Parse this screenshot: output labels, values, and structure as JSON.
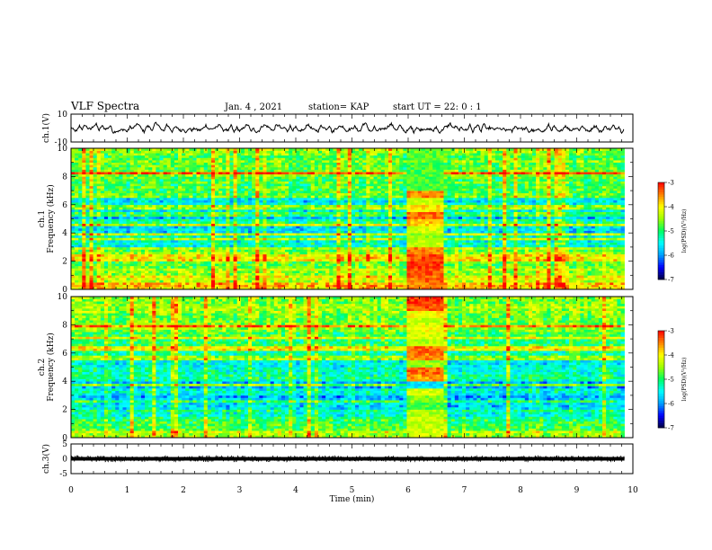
{
  "header": {
    "title": "VLF Spectra",
    "date": "Jan. 4 , 2021",
    "station": "station= KAP",
    "start": "start UT =  22: 0 : 1"
  },
  "chart_data": [
    {
      "type": "line",
      "name": "waveform_ch1",
      "ylabel": "ch.1(V)",
      "ylim": [
        -10,
        10
      ],
      "yticks": [
        "10",
        "-10"
      ],
      "xlim": [
        0,
        9.85
      ],
      "x_step_min": 0.05,
      "values": [
        0.5,
        -1.4,
        -2.3,
        1.5,
        -0.8,
        2.3,
        -0.2,
        -0.9,
        1.6,
        2.7,
        -1.8,
        1.7,
        -0.5,
        -0.4,
        1.8,
        -3.2,
        -2.2,
        -2.3,
        -1.2,
        -1.0,
        -2.7,
        0.9,
        -0.3,
        1.9,
        3.0,
        -0.3,
        -2.7,
        1.4,
        0.8,
        -2.0,
        3.8,
        2.7,
        -1.0,
        -2.4,
        2.5,
        0.4,
        -2.4,
        0.6,
        0.2,
        -2.2,
        -0.4,
        -3.5,
        0.0,
        -1.7,
        -0.2,
        -1.4,
        -1.5,
        -0.3,
        2.1,
        -0.7,
        -0.6,
        -0.1,
        0.6,
        3.2,
        -1.8,
        -0.9,
        -2.2,
        2.2,
        -3.1,
        0.4,
        -2.1,
        -0.8,
        1.5,
        2.5,
        -2.2,
        -0.4,
        -2.9,
        -1.8,
        1.4,
        2.1,
        1.0,
        -0.3,
        -2.2,
        1.9,
        2.0,
        -0.8,
        0.5,
        -2.3,
        1.5,
        -1.5,
        0.6,
        -2.7,
        -1.4,
        -1.5,
        2.8,
        1.2,
        -1.0,
        -1.4,
        -2.3,
        1.8,
        0.3,
        -0.8,
        1.9,
        -3.3,
        -0.6,
        0.5,
        1.3,
        0.8,
        -2.4,
        -1.0,
        -0.5,
        1.1,
        -1.6,
        -2.2,
        3.0,
        3.1,
        -1.2,
        -2.6,
        0.7,
        -2.5,
        -0.9,
        -0.3,
        -0.3,
        1.5,
        3.0,
        0.1,
        -1.7,
        1.9,
        -0.4,
        -3.0,
        -1.6,
        1.2,
        -2.8,
        0.6,
        -1.4,
        -0.9,
        -0.5,
        -1.3,
        -0.7,
        -2.1,
        0.9,
        -3.3,
        -1.8,
        0.7,
        1.1,
        3.2,
        -0.2,
        1.3,
        -1.6,
        0.2,
        -1.0,
        -1.6,
        2.7,
        -2.9,
        1.0,
        2.0,
        -2.7,
        3.7,
        -1.3,
        0.3,
        -0.5,
        -1.1,
        0.3,
        -1.2,
        -0.7,
        -1.8,
        -0.8,
        -2.6,
        1.5,
        -0.2,
        0.1,
        -1.0,
        0.0,
        -2.9,
        -1.4,
        -2.2,
        -1.3,
        -1.3,
        -2.6,
        -1.1,
        2.4,
        -1.5,
        1.3,
        -1.9,
        -2.8,
        -0.6,
        1.7,
        -0.5,
        -1.8,
        -0.3,
        -0.1,
        -1.4,
        1.8,
        -1.0,
        -2.4,
        -1.5,
        1.1,
        1.3,
        -2.3,
        -2.4,
        1.1,
        -0.2,
        -1.2,
        1.8,
        -0.4,
        0.9,
        -2.9,
        -0.3
      ]
    },
    {
      "type": "heatmap",
      "name": "spectrogram_ch1",
      "ylabel": "ch.1\nFrequency (kHz)",
      "ylim": [
        0,
        10
      ],
      "yticks": [
        "0",
        "2",
        "4",
        "6",
        "8",
        "10"
      ],
      "zlabel": "log(PSD)(V²/Hz)",
      "zlim": [
        -7,
        -3
      ],
      "zticks": [
        "-3",
        "-4",
        "-5",
        "-6",
        "-7"
      ],
      "freq_kHz": [
        0.25,
        0.75,
        1.25,
        1.75,
        2.25,
        2.75,
        3.25,
        3.75,
        4.25,
        4.75,
        5.25,
        5.75,
        6.25,
        6.75,
        7.25,
        7.75,
        8.25,
        8.75,
        9.25,
        9.75
      ],
      "time_min": [
        0,
        0.5,
        1,
        1.5,
        2,
        2.5,
        3,
        3.5,
        4,
        4.5,
        5,
        5.5,
        6,
        6.5,
        7,
        7.5,
        8,
        8.5,
        9,
        9.5
      ],
      "level_by_freq": [
        -3.8,
        -4.2,
        -4.4,
        -4.7,
        -4.0,
        -4.6,
        -5.4,
        -5.3,
        -5.6,
        -5.3,
        -5.7,
        -5.6,
        -5.5,
        -4.7,
        -4.9,
        -4.8,
        -4.6,
        -4.6,
        -4.7,
        -4.6
      ],
      "burst_time_min": [
        6.0,
        6.65
      ],
      "burst_level_freq": [
        -3.5,
        -3.4,
        -3.3,
        -3.2,
        -3.3,
        -3.5,
        -4.3,
        -4.5,
        -4.2,
        -3.8,
        -3.4,
        -3.9,
        -4.3,
        -3.5,
        -4.8,
        -4.8,
        -4.8,
        -4.8,
        -4.7,
        -4.7
      ]
    },
    {
      "type": "heatmap",
      "name": "spectrogram_ch2",
      "ylabel": "ch.2\nFrequency (kHz)",
      "ylim": [
        0,
        10
      ],
      "yticks": [
        "0",
        "2",
        "4",
        "6",
        "8",
        "10"
      ],
      "zlabel": "log(PSD)(V²/Hz)",
      "zlim": [
        -7,
        -3
      ],
      "zticks": [
        "-3",
        "-4",
        "-5",
        "-6",
        "-7"
      ],
      "freq_kHz": [
        0.25,
        0.75,
        1.25,
        1.75,
        2.25,
        2.75,
        3.25,
        3.75,
        4.25,
        4.75,
        5.25,
        5.75,
        6.25,
        6.75,
        7.25,
        7.75,
        8.25,
        8.75,
        9.25,
        9.75
      ],
      "time_min": [
        0,
        0.5,
        1,
        1.5,
        2,
        2.5,
        3,
        3.5,
        4,
        4.5,
        5,
        5.5,
        6,
        6.5,
        7,
        7.5,
        8,
        8.5,
        9,
        9.5
      ],
      "level_by_freq": [
        -4.4,
        -4.8,
        -5.0,
        -5.3,
        -5.7,
        -5.8,
        -5.5,
        -5.9,
        -5.3,
        -5.4,
        -5.5,
        -5.3,
        -5.2,
        -5.0,
        -4.9,
        -4.7,
        -4.6,
        -4.6,
        -4.5,
        -4.5
      ],
      "burst_time_min": [
        6.0,
        6.65
      ],
      "burst_level_freq": [
        -4.2,
        -4.3,
        -4.3,
        -4.4,
        -4.8,
        -4.6,
        -4.2,
        -5.6,
        -3.6,
        -3.4,
        -4.5,
        -3.5,
        -3.4,
        -4.4,
        -4.2,
        -4.1,
        -4.3,
        -4.0,
        -3.3,
        -3.2
      ]
    },
    {
      "type": "line",
      "name": "waveform_ch3",
      "ylabel": "ch.3(V)",
      "ylim": [
        -5,
        5
      ],
      "yticks": [
        "5",
        "0",
        "-5"
      ],
      "xlim": [
        0,
        9.85
      ],
      "level": 0,
      "band_halfwidth_V": 0.6,
      "xlabel": "Time (min)",
      "xticks": [
        "0",
        "1",
        "2",
        "3",
        "4",
        "5",
        "6",
        "7",
        "8",
        "9",
        "10"
      ],
      "xlim_axis": [
        0,
        10
      ]
    }
  ],
  "palette": {
    "colorbar_stops": [
      "#000040",
      "#0000ff",
      "#00a0ff",
      "#00ffff",
      "#00ff60",
      "#a0ff00",
      "#ffff00",
      "#ff8000",
      "#ff0000",
      "#ffffff"
    ]
  }
}
